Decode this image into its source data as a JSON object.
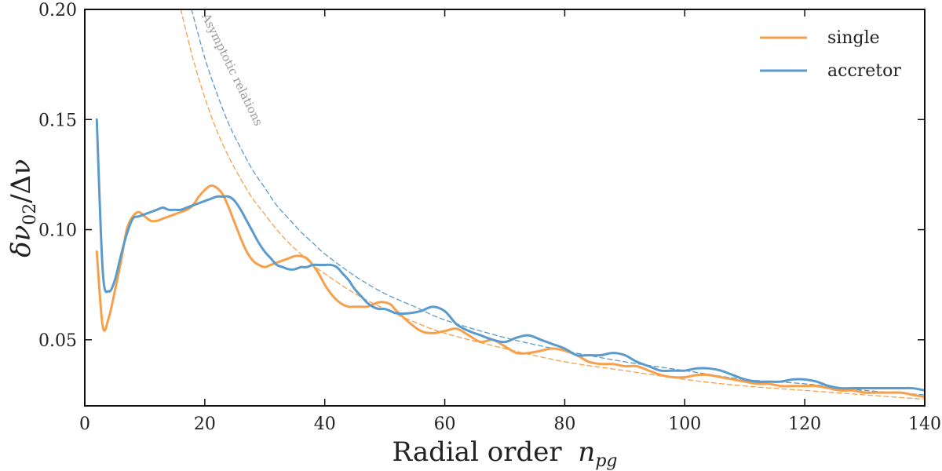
{
  "chart_data": {
    "type": "line",
    "title": "",
    "xlabel": "Radial order",
    "xlabel_math": "n",
    "xlabel_sub": "pg",
    "ylabel": "δν02/Δν",
    "ylabel_parts": {
      "delta": "δν",
      "sub": "02",
      "rest": "/Δν"
    },
    "xlim": [
      0,
      140
    ],
    "ylim": [
      0.02,
      0.2
    ],
    "xticks": [
      0,
      20,
      40,
      60,
      80,
      100,
      120,
      140
    ],
    "xtick_labels": [
      "0",
      "20",
      "40",
      "60",
      "80",
      "100",
      "120",
      "140"
    ],
    "yticks": [
      0.05,
      0.1,
      0.15,
      0.2
    ],
    "ytick_labels": [
      "0.05",
      "0.10",
      "0.15",
      "0.20"
    ],
    "legend_position": "top-right",
    "annotation": "Asymptotic relations",
    "series": [
      {
        "name": "single",
        "color": "#f7a04b",
        "style": "solid",
        "x": [
          2,
          3,
          4,
          5,
          6,
          7,
          8,
          9,
          10,
          11,
          12,
          13,
          14,
          15,
          16,
          17,
          18,
          19,
          20,
          21,
          22,
          23,
          24,
          25,
          26,
          27,
          28,
          29,
          30,
          31,
          32,
          33,
          34,
          35,
          36,
          37,
          38,
          39,
          40,
          41,
          42,
          43,
          44,
          45,
          46,
          47,
          48,
          49,
          50,
          51,
          52,
          54,
          56,
          58,
          60,
          62,
          64,
          66,
          68,
          70,
          72,
          74,
          76,
          78,
          80,
          82,
          84,
          86,
          88,
          90,
          92,
          94,
          96,
          98,
          100,
          102,
          104,
          106,
          108,
          110,
          112,
          114,
          116,
          118,
          120,
          122,
          124,
          126,
          128,
          130,
          132,
          134,
          136,
          138,
          140
        ],
        "y": [
          0.09,
          0.056,
          0.06,
          0.072,
          0.085,
          0.1,
          0.106,
          0.108,
          0.106,
          0.104,
          0.104,
          0.105,
          0.106,
          0.107,
          0.108,
          0.109,
          0.111,
          0.115,
          0.118,
          0.12,
          0.119,
          0.116,
          0.11,
          0.103,
          0.096,
          0.09,
          0.086,
          0.084,
          0.083,
          0.084,
          0.085,
          0.086,
          0.087,
          0.088,
          0.088,
          0.087,
          0.084,
          0.08,
          0.075,
          0.071,
          0.068,
          0.066,
          0.065,
          0.065,
          0.065,
          0.065,
          0.066,
          0.067,
          0.067,
          0.066,
          0.063,
          0.058,
          0.054,
          0.053,
          0.054,
          0.055,
          0.052,
          0.049,
          0.05,
          0.047,
          0.044,
          0.044,
          0.045,
          0.046,
          0.045,
          0.043,
          0.04,
          0.039,
          0.039,
          0.038,
          0.038,
          0.036,
          0.034,
          0.033,
          0.033,
          0.034,
          0.034,
          0.033,
          0.032,
          0.031,
          0.03,
          0.03,
          0.029,
          0.029,
          0.029,
          0.029,
          0.028,
          0.027,
          0.027,
          0.026,
          0.026,
          0.026,
          0.026,
          0.025,
          0.024
        ]
      },
      {
        "name": "accretor",
        "color": "#5a9bcc",
        "style": "solid",
        "x": [
          2,
          3,
          4,
          5,
          6,
          7,
          8,
          9,
          10,
          11,
          12,
          13,
          14,
          15,
          16,
          17,
          18,
          19,
          20,
          21,
          22,
          23,
          24,
          25,
          26,
          27,
          28,
          29,
          30,
          31,
          32,
          33,
          34,
          35,
          36,
          37,
          38,
          39,
          40,
          41,
          42,
          43,
          44,
          45,
          46,
          47,
          48,
          49,
          50,
          51,
          52,
          54,
          56,
          58,
          60,
          62,
          64,
          66,
          68,
          70,
          72,
          74,
          76,
          78,
          80,
          82,
          84,
          86,
          88,
          90,
          92,
          94,
          96,
          98,
          100,
          102,
          104,
          106,
          108,
          110,
          112,
          114,
          116,
          118,
          120,
          122,
          124,
          126,
          128,
          130,
          132,
          134,
          136,
          138,
          140
        ],
        "y": [
          0.15,
          0.081,
          0.072,
          0.077,
          0.088,
          0.098,
          0.105,
          0.106,
          0.107,
          0.108,
          0.109,
          0.11,
          0.109,
          0.109,
          0.109,
          0.11,
          0.111,
          0.112,
          0.113,
          0.114,
          0.115,
          0.115,
          0.115,
          0.113,
          0.109,
          0.104,
          0.099,
          0.094,
          0.09,
          0.087,
          0.084,
          0.083,
          0.082,
          0.082,
          0.083,
          0.083,
          0.084,
          0.084,
          0.084,
          0.084,
          0.083,
          0.08,
          0.077,
          0.073,
          0.07,
          0.067,
          0.065,
          0.064,
          0.064,
          0.063,
          0.062,
          0.062,
          0.063,
          0.065,
          0.063,
          0.057,
          0.054,
          0.052,
          0.05,
          0.049,
          0.051,
          0.052,
          0.05,
          0.048,
          0.046,
          0.043,
          0.043,
          0.043,
          0.044,
          0.043,
          0.04,
          0.038,
          0.036,
          0.036,
          0.036,
          0.037,
          0.037,
          0.036,
          0.034,
          0.032,
          0.031,
          0.031,
          0.031,
          0.032,
          0.032,
          0.031,
          0.029,
          0.028,
          0.028,
          0.028,
          0.028,
          0.028,
          0.028,
          0.028,
          0.027
        ]
      },
      {
        "name": "single asymptotic",
        "color": "#f7a04b",
        "style": "dashed",
        "x": [
          16,
          18,
          20,
          22,
          24,
          26,
          28,
          30,
          32,
          34,
          36,
          38,
          40,
          45,
          50,
          55,
          60,
          70,
          80,
          90,
          100,
          110,
          120,
          130,
          140
        ],
        "y": [
          0.2,
          0.178,
          0.16,
          0.145,
          0.133,
          0.123,
          0.114,
          0.107,
          0.1,
          0.094,
          0.089,
          0.084,
          0.08,
          0.071,
          0.064,
          0.058,
          0.053,
          0.046,
          0.04,
          0.036,
          0.032,
          0.029,
          0.027,
          0.025,
          0.023
        ]
      },
      {
        "name": "accretor asymptotic",
        "color": "#5a9bcc",
        "style": "dashed",
        "x": [
          17.8,
          20,
          22,
          24,
          26,
          28,
          30,
          32,
          34,
          36,
          38,
          40,
          45,
          50,
          55,
          60,
          70,
          80,
          90,
          100,
          110,
          120,
          130,
          140
        ],
        "y": [
          0.2,
          0.178,
          0.162,
          0.148,
          0.137,
          0.127,
          0.119,
          0.111,
          0.105,
          0.099,
          0.094,
          0.089,
          0.079,
          0.071,
          0.065,
          0.059,
          0.051,
          0.045,
          0.04,
          0.036,
          0.032,
          0.03,
          0.027,
          0.025
        ]
      }
    ]
  }
}
